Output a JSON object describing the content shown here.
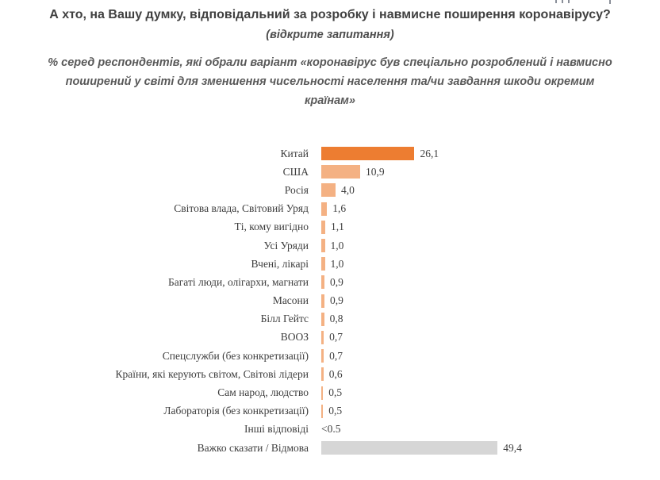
{
  "header": {
    "title": "А хто, на Вашу думку, відповідальний за розробку і навмисне поширення коронавірусу?",
    "note": "(відкрите запитання)",
    "subtitle": "% серед респондентів, які обрали варіант «коронавірус був спеціально розроблений і навмисно поширений у світі для зменшення чисельності населення та/чи завдання шкоди окремим країнам»"
  },
  "chart_data": {
    "type": "bar",
    "orientation": "horizontal",
    "title": "А хто, на Вашу думку, відповідальний за розробку і навмисне поширення коронавірусу? (відкрите запитання)",
    "xlabel": "",
    "ylabel": "",
    "xlim": [
      0,
      52
    ],
    "grid": false,
    "legend": false,
    "categories": [
      "Китай",
      "США",
      "Росія",
      "Світова влада, Світовий Уряд",
      "Ті, кому вигідно",
      "Усі Уряди",
      "Вчені, лікарі",
      "Багаті люди, олігархи, магнати",
      "Масони",
      "Білл Гейтс",
      "ВООЗ",
      "Спецслужби (без конкретизації)",
      "Країни, які керують світом, Світові лідери",
      "Сам народ, людство",
      "Лабораторія (без конкретизації)",
      "Інші відповіді",
      "Важко сказати / Відмова"
    ],
    "values": [
      26.1,
      10.9,
      4.0,
      1.6,
      1.1,
      1.0,
      1.0,
      0.9,
      0.9,
      0.8,
      0.7,
      0.7,
      0.6,
      0.5,
      0.5,
      null,
      49.4
    ],
    "value_labels": [
      "26,1",
      "10,9",
      "4,0",
      "1,6",
      "1,1",
      "1,0",
      "1,0",
      "0,9",
      "0,9",
      "0,8",
      "0,7",
      "0,7",
      "0,6",
      "0,5",
      "0,5",
      "<0.5",
      "49,4"
    ],
    "bar_roles": [
      "highlight",
      "normal",
      "normal",
      "normal",
      "normal",
      "normal",
      "normal",
      "normal",
      "normal",
      "normal",
      "normal",
      "normal",
      "normal",
      "normal",
      "normal",
      "none",
      "neutral"
    ],
    "colors": {
      "highlight": "#ED7D31",
      "normal": "#F4B183",
      "neutral": "#D6D6D6",
      "none": "transparent"
    }
  }
}
